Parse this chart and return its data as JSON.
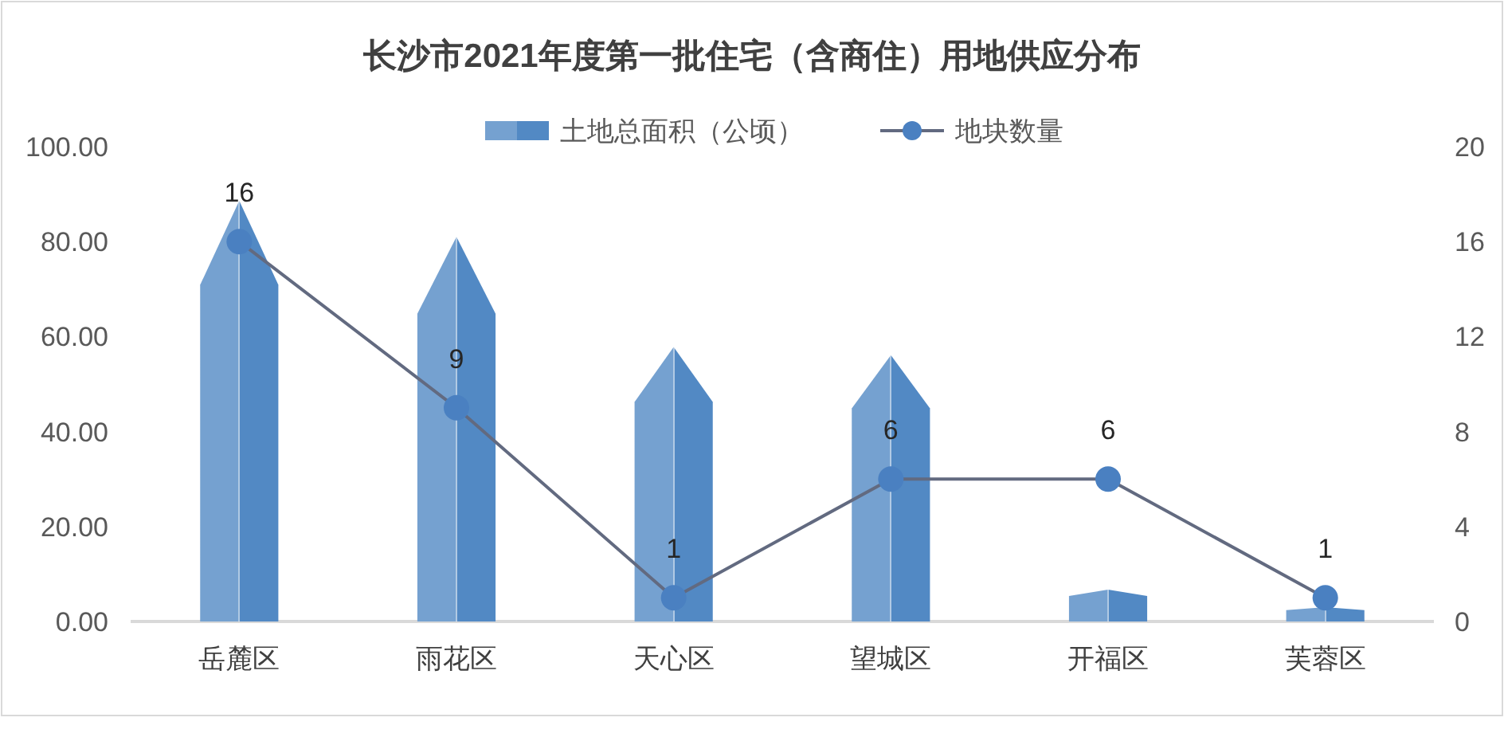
{
  "chart_data": {
    "type": "bar",
    "title": "长沙市2021年度第一批住宅（含商住）用地供应分布",
    "categories": [
      "岳麓区",
      "雨花区",
      "天心区",
      "望城区",
      "开福区",
      "芙蓉区"
    ],
    "series": [
      {
        "name": "土地总面积（公顷）",
        "color": "#5289c4",
        "values": [
          88.6,
          81.0,
          57.8,
          56.1,
          6.7,
          3.0
        ]
      },
      {
        "name": "地块数量",
        "type": "line",
        "axis": "y2",
        "color": "#4a80c1",
        "values": [
          16,
          9,
          1,
          6,
          6,
          1
        ],
        "value_labels": [
          "16",
          "9",
          "1",
          "6",
          "6",
          "1"
        ]
      }
    ],
    "ylim": [
      0,
      100
    ],
    "yticks": [
      {
        "value": 0,
        "label": "0.00"
      },
      {
        "value": 20,
        "label": "20.00"
      },
      {
        "value": 40,
        "label": "40.00"
      },
      {
        "value": 60,
        "label": "60.00"
      },
      {
        "value": 80,
        "label": "80.00"
      },
      {
        "value": 100,
        "label": "100.00"
      }
    ],
    "y2lim": [
      0,
      20
    ],
    "y2ticks": [
      0,
      4,
      8,
      12,
      16,
      20
    ],
    "legend": "top",
    "marker": "circle",
    "line_style": "solid"
  }
}
